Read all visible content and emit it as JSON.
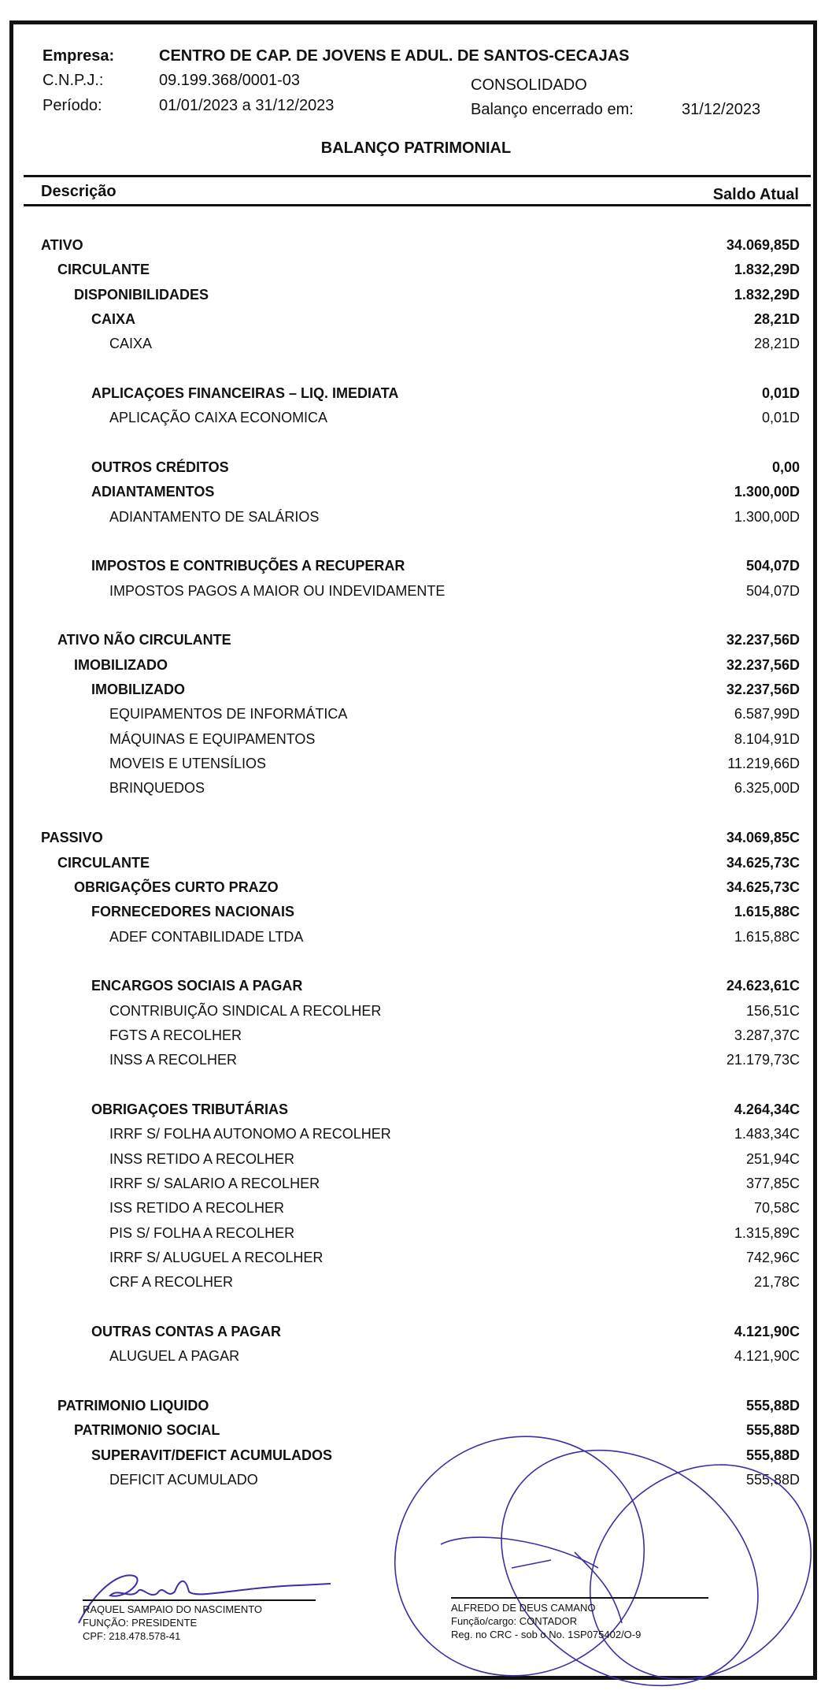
{
  "header": {
    "empresa_label": "Empresa:",
    "empresa_value": "CENTRO DE CAP. DE JOVENS E ADUL. DE SANTOS-CECAJAS",
    "cnpj_label": "C.N.P.J.:",
    "cnpj_value": "09.199.368/0001-03",
    "periodo_label": "Período:",
    "periodo_value": "01/01/2023 a 31/12/2023",
    "consolidado": "CONSOLIDADO",
    "encerrado_label": "Balanço encerrado em:",
    "encerrado_value": "31/12/2023"
  },
  "title": "BALANÇO PATRIMONIAL",
  "columns": {
    "descricao": "Descrição",
    "saldo": "Saldo Atual"
  },
  "rows": [
    {
      "label": "ATIVO",
      "value": "34.069,85D",
      "level": 0,
      "bold": true
    },
    {
      "label": "CIRCULANTE",
      "value": "1.832,29D",
      "level": 1,
      "bold": true
    },
    {
      "label": "DISPONIBILIDADES",
      "value": "1.832,29D",
      "level": 2,
      "bold": true
    },
    {
      "label": "CAIXA",
      "value": "28,21D",
      "level": 3,
      "bold": true
    },
    {
      "label": "CAIXA",
      "value": "28,21D",
      "level": 4,
      "bold": false
    },
    {
      "label": "APLICAÇOES FINANCEIRAS – LIQ. IMEDIATA",
      "value": "0,01D",
      "level": 3,
      "bold": true
    },
    {
      "label": "APLICAÇÃO CAIXA ECONOMICA",
      "value": "0,01D",
      "level": 4,
      "bold": false
    },
    {
      "label": "OUTROS CRÉDITOS",
      "value": "0,00",
      "level": 3,
      "bold": true
    },
    {
      "label": "ADIANTAMENTOS",
      "value": "1.300,00D",
      "level": 3,
      "bold": true
    },
    {
      "label": "ADIANTAMENTO DE SALÁRIOS",
      "value": "1.300,00D",
      "level": 4,
      "bold": false
    },
    {
      "label": "IMPOSTOS E CONTRIBUÇÕES A RECUPERAR",
      "value": "504,07D",
      "level": 3,
      "bold": true
    },
    {
      "label": "IMPOSTOS PAGOS A MAIOR OU INDEVIDAMENTE",
      "value": "504,07D",
      "level": 4,
      "bold": false
    },
    {
      "label": "ATIVO NÃO CIRCULANTE",
      "value": "32.237,56D",
      "level": 1,
      "bold": true
    },
    {
      "label": "IMOBILIZADO",
      "value": "32.237,56D",
      "level": 2,
      "bold": true
    },
    {
      "label": "IMOBILIZADO",
      "value": "32.237,56D",
      "level": 3,
      "bold": true
    },
    {
      "label": "EQUIPAMENTOS DE INFORMÁTICA",
      "value": "6.587,99D",
      "level": 4,
      "bold": false
    },
    {
      "label": "MÁQUINAS E EQUIPAMENTOS",
      "value": "8.104,91D",
      "level": 4,
      "bold": false
    },
    {
      "label": "MOVEIS E UTENSÍLIOS",
      "value": "11.219,66D",
      "level": 4,
      "bold": false
    },
    {
      "label": "BRINQUEDOS",
      "value": "6.325,00D",
      "level": 4,
      "bold": false
    },
    {
      "label": "PASSIVO",
      "value": "34.069,85C",
      "level": 0,
      "bold": true
    },
    {
      "label": "CIRCULANTE",
      "value": "34.625,73C",
      "level": 1,
      "bold": true
    },
    {
      "label": "OBRIGAÇÕES CURTO PRAZO",
      "value": "34.625,73C",
      "level": 2,
      "bold": true
    },
    {
      "label": "FORNECEDORES NACIONAIS",
      "value": "1.615,88C",
      "level": 3,
      "bold": true
    },
    {
      "label": "ADEF CONTABILIDADE LTDA",
      "value": "1.615,88C",
      "level": 4,
      "bold": false
    },
    {
      "label": "ENCARGOS SOCIAIS A PAGAR",
      "value": "24.623,61C",
      "level": 3,
      "bold": true
    },
    {
      "label": "CONTRIBUIÇÃO SINDICAL A RECOLHER",
      "value": "156,51C",
      "level": 4,
      "bold": false
    },
    {
      "label": "FGTS A RECOLHER",
      "value": "3.287,37C",
      "level": 4,
      "bold": false
    },
    {
      "label": "INSS A RECOLHER",
      "value": "21.179,73C",
      "level": 4,
      "bold": false
    },
    {
      "label": "OBRIGAÇOES TRIBUTÁRIAS",
      "value": "4.264,34C",
      "level": 3,
      "bold": true
    },
    {
      "label": "IRRF S/ FOLHA AUTONOMO A RECOLHER",
      "value": "1.483,34C",
      "level": 4,
      "bold": false
    },
    {
      "label": "INSS RETIDO A RECOLHER",
      "value": "251,94C",
      "level": 4,
      "bold": false
    },
    {
      "label": "IRRF S/ SALARIO A RECOLHER",
      "value": "377,85C",
      "level": 4,
      "bold": false
    },
    {
      "label": "ISS RETIDO A RECOLHER",
      "value": "70,58C",
      "level": 4,
      "bold": false
    },
    {
      "label": "PIS S/ FOLHA A RECOLHER",
      "value": "1.315,89C",
      "level": 4,
      "bold": false
    },
    {
      "label": "IRRF S/ ALUGUEL A RECOLHER",
      "value": "742,96C",
      "level": 4,
      "bold": false
    },
    {
      "label": "CRF A RECOLHER",
      "value": "21,78C",
      "level": 4,
      "bold": false
    },
    {
      "label": "OUTRAS CONTAS A PAGAR",
      "value": "4.121,90C",
      "level": 3,
      "bold": true
    },
    {
      "label": "ALUGUEL A PAGAR",
      "value": "4.121,90C",
      "level": 4,
      "bold": false
    },
    {
      "label": "PATRIMONIO LIQUIDO",
      "value": "555,88D",
      "level": 1,
      "bold": true
    },
    {
      "label": "PATRIMONIO SOCIAL",
      "value": "555,88D",
      "level": 2,
      "bold": true
    },
    {
      "label": "SUPERAVIT/DEFICT ACUMULADOS",
      "value": "555,88D",
      "level": 3,
      "bold": true
    },
    {
      "label": "DEFICIT ACUMULADO",
      "value": "555,88D",
      "level": 4,
      "bold": false
    }
  ],
  "signatures": {
    "left": {
      "name": "RAQUEL SAMPAIO DO NASCIMENTO",
      "role": "FUNÇÃO: PRESIDENTE",
      "id": "CPF: 218.478.578-41"
    },
    "right": {
      "name": "ALFREDO DE DEUS CAMANO",
      "role": "Função/cargo: CONTADOR",
      "id": "Reg. no CRC - sob o No. 1SP075402/O-9"
    }
  },
  "colors": {
    "ink": "#111111",
    "signature_ink": "#3b2fa6"
  }
}
